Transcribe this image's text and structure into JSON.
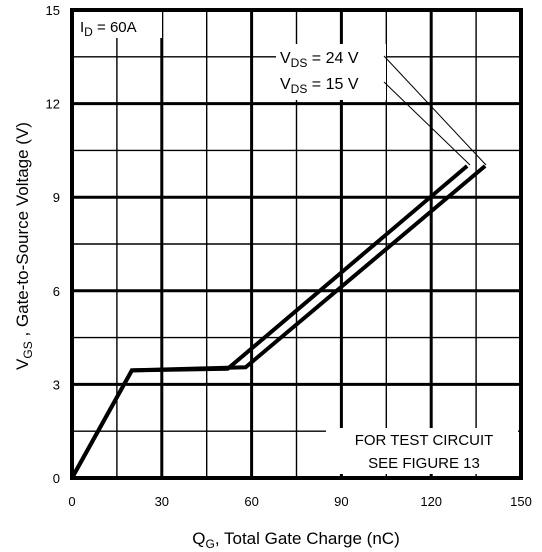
{
  "chart_data": {
    "type": "line",
    "xlabel": {
      "main": "Q",
      "sub": "G",
      "rest": ", Total Gate Charge (nC)"
    },
    "ylabel": {
      "main": "V",
      "sub": "GS",
      "rest": " , Gate-to-Source Voltage (V)"
    },
    "xlim": [
      0,
      150
    ],
    "ylim": [
      0,
      15
    ],
    "x_ticks": [
      "0",
      "30",
      "60",
      "90",
      "120",
      "150"
    ],
    "y_ticks": [
      "0",
      "3",
      "6",
      "9",
      "12",
      "15"
    ],
    "grid": true,
    "condition_label": {
      "main": "I",
      "sub": "D",
      "rest": " = 60A"
    },
    "note_line1": "FOR TEST CIRCUIT",
    "note_line2": "SEE FIGURE 13",
    "series": [
      {
        "name": {
          "main": "V",
          "sub": "DS",
          "rest": " = 24 V"
        },
        "x": [
          0,
          20,
          58,
          138
        ],
        "y": [
          0,
          3.45,
          3.55,
          10.0
        ]
      },
      {
        "name": {
          "main": "V",
          "sub": "DS",
          "rest": " = 15 V"
        },
        "x": [
          0,
          20,
          52,
          132
        ],
        "y": [
          0,
          3.45,
          3.5,
          10.0
        ]
      }
    ],
    "colors": {
      "line": "#000000",
      "grid": "#000000",
      "background": "#ffffff"
    }
  }
}
